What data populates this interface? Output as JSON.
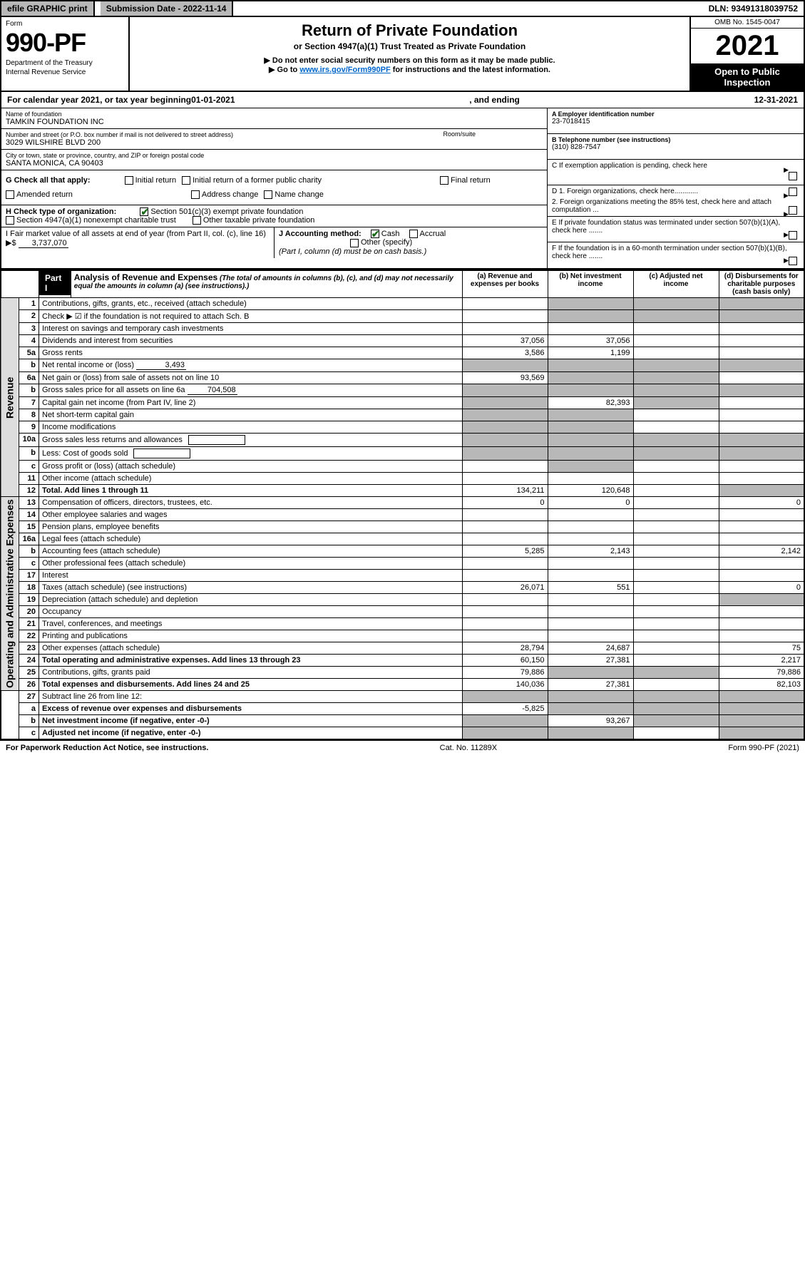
{
  "topbar": {
    "efile": "efile GRAPHIC print",
    "submission": "Submission Date - 2022-11-14",
    "dln": "DLN: 93491318039752"
  },
  "header": {
    "form_word": "Form",
    "form_number": "990-PF",
    "dept1": "Department of the Treasury",
    "dept2": "Internal Revenue Service",
    "title": "Return of Private Foundation",
    "subtitle": "or Section 4947(a)(1) Trust Treated as Private Foundation",
    "note1": "▶ Do not enter social security numbers on this form as it may be made public.",
    "note2_pre": "▶ Go to ",
    "note2_link": "www.irs.gov/Form990PF",
    "note2_post": " for instructions and the latest information.",
    "omb": "OMB No. 1545-0047",
    "year": "2021",
    "open": "Open to Public Inspection"
  },
  "calyear": {
    "pre": "For calendar year 2021, or tax year beginning ",
    "begin": "01-01-2021",
    "mid": " , and ending ",
    "end": "12-31-2021"
  },
  "id": {
    "name_lbl": "Name of foundation",
    "name": "TAMKIN FOUNDATION INC",
    "addr_lbl": "Number and street (or P.O. box number if mail is not delivered to street address)",
    "addr": "3029 WILSHIRE BLVD 200",
    "room_lbl": "Room/suite",
    "city_lbl": "City or town, state or province, country, and ZIP or foreign postal code",
    "city": "SANTA MONICA, CA  90403",
    "a_lbl": "A Employer identification number",
    "a_val": "23-7018415",
    "b_lbl": "B Telephone number (see instructions)",
    "b_val": "(310) 828-7547",
    "c_lbl": "C If exemption application is pending, check here",
    "d1_lbl": "D 1. Foreign organizations, check here............",
    "d2_lbl": "2. Foreign organizations meeting the 85% test, check here and attach computation ...",
    "e_lbl": "E  If private foundation status was terminated under section 507(b)(1)(A), check here .......",
    "f_lbl": "F  If the foundation is in a 60-month termination under section 507(b)(1)(B), check here ......."
  },
  "g": {
    "label": "G Check all that apply:",
    "opts": [
      "Initial return",
      "Initial return of a former public charity",
      "Final return",
      "Amended return",
      "Address change",
      "Name change"
    ]
  },
  "h": {
    "label": "H Check type of organization:",
    "opt1": "Section 501(c)(3) exempt private foundation",
    "opt2": "Section 4947(a)(1) nonexempt charitable trust",
    "opt3": "Other taxable private foundation"
  },
  "i": {
    "label": "I Fair market value of all assets at end of year (from Part II, col. (c), line 16)",
    "arrow": "▶$",
    "val": "3,737,070"
  },
  "j": {
    "label": "J Accounting method:",
    "cash": "Cash",
    "accrual": "Accrual",
    "other": "Other (specify)",
    "note": "(Part I, column (d) must be on cash basis.)"
  },
  "part1": {
    "tag": "Part I",
    "title": "Analysis of Revenue and Expenses",
    "desc": "(The total of amounts in columns (b), (c), and (d) may not necessarily equal the amounts in column (a) (see instructions).)",
    "col_a": "(a) Revenue and expenses per books",
    "col_b": "(b) Net investment income",
    "col_c": "(c) Adjusted net income",
    "col_d": "(d) Disbursements for charitable purposes (cash basis only)"
  },
  "side": {
    "revenue": "Revenue",
    "opex": "Operating and Administrative Expenses"
  },
  "rows": [
    {
      "n": "1",
      "d": "Contributions, gifts, grants, etc., received (attach schedule)",
      "a": "",
      "b": "",
      "c": "",
      "dd": "",
      "bs": true,
      "cs": true,
      "ds": true
    },
    {
      "n": "2",
      "d": "Check ▶ ☑ if the foundation is not required to attach Sch. B",
      "a": "",
      "b": "",
      "c": "",
      "dd": "",
      "bs": true,
      "cs": true,
      "ds": true,
      "bold_check": true
    },
    {
      "n": "3",
      "d": "Interest on savings and temporary cash investments",
      "a": "",
      "b": "",
      "c": "",
      "dd": ""
    },
    {
      "n": "4",
      "d": "Dividends and interest from securities",
      "a": "37,056",
      "b": "37,056",
      "c": "",
      "dd": ""
    },
    {
      "n": "5a",
      "d": "Gross rents",
      "a": "3,586",
      "b": "1,199",
      "c": "",
      "dd": ""
    },
    {
      "n": "b",
      "d": "Net rental income or (loss)",
      "inline": "3,493",
      "a": "",
      "b": "",
      "c": "",
      "dd": "",
      "as": true,
      "bs": true,
      "cs": true,
      "ds": true
    },
    {
      "n": "6a",
      "d": "Net gain or (loss) from sale of assets not on line 10",
      "a": "93,569",
      "b": "",
      "c": "",
      "dd": "",
      "bs": true,
      "cs": true
    },
    {
      "n": "b",
      "d": "Gross sales price for all assets on line 6a",
      "inline": "704,508",
      "a": "",
      "b": "",
      "c": "",
      "dd": "",
      "as": true,
      "bs": true,
      "cs": true,
      "ds": true
    },
    {
      "n": "7",
      "d": "Capital gain net income (from Part IV, line 2)",
      "a": "",
      "b": "82,393",
      "c": "",
      "dd": "",
      "as": true,
      "cs": true
    },
    {
      "n": "8",
      "d": "Net short-term capital gain",
      "a": "",
      "b": "",
      "c": "",
      "dd": "",
      "as": true,
      "bs": true
    },
    {
      "n": "9",
      "d": "Income modifications",
      "a": "",
      "b": "",
      "c": "",
      "dd": "",
      "as": true,
      "bs": true
    },
    {
      "n": "10a",
      "d": "Gross sales less returns and allowances",
      "box": true,
      "a": "",
      "b": "",
      "c": "",
      "dd": "",
      "as": true,
      "bs": true,
      "cs": true,
      "ds": true
    },
    {
      "n": "b",
      "d": "Less: Cost of goods sold",
      "box": true,
      "a": "",
      "b": "",
      "c": "",
      "dd": "",
      "as": true,
      "bs": true,
      "cs": true,
      "ds": true
    },
    {
      "n": "c",
      "d": "Gross profit or (loss) (attach schedule)",
      "a": "",
      "b": "",
      "c": "",
      "dd": "",
      "bs": true
    },
    {
      "n": "11",
      "d": "Other income (attach schedule)",
      "a": "",
      "b": "",
      "c": "",
      "dd": ""
    },
    {
      "n": "12",
      "d": "Total. Add lines 1 through 11",
      "a": "134,211",
      "b": "120,648",
      "c": "",
      "dd": "",
      "bold": true,
      "ds": true
    }
  ],
  "oprows": [
    {
      "n": "13",
      "d": "Compensation of officers, directors, trustees, etc.",
      "a": "0",
      "b": "0",
      "c": "",
      "dd": "0"
    },
    {
      "n": "14",
      "d": "Other employee salaries and wages",
      "a": "",
      "b": "",
      "c": "",
      "dd": ""
    },
    {
      "n": "15",
      "d": "Pension plans, employee benefits",
      "a": "",
      "b": "",
      "c": "",
      "dd": ""
    },
    {
      "n": "16a",
      "d": "Legal fees (attach schedule)",
      "a": "",
      "b": "",
      "c": "",
      "dd": ""
    },
    {
      "n": "b",
      "d": "Accounting fees (attach schedule)",
      "a": "5,285",
      "b": "2,143",
      "c": "",
      "dd": "2,142"
    },
    {
      "n": "c",
      "d": "Other professional fees (attach schedule)",
      "a": "",
      "b": "",
      "c": "",
      "dd": ""
    },
    {
      "n": "17",
      "d": "Interest",
      "a": "",
      "b": "",
      "c": "",
      "dd": ""
    },
    {
      "n": "18",
      "d": "Taxes (attach schedule) (see instructions)",
      "a": "26,071",
      "b": "551",
      "c": "",
      "dd": "0"
    },
    {
      "n": "19",
      "d": "Depreciation (attach schedule) and depletion",
      "a": "",
      "b": "",
      "c": "",
      "dd": "",
      "ds": true
    },
    {
      "n": "20",
      "d": "Occupancy",
      "a": "",
      "b": "",
      "c": "",
      "dd": ""
    },
    {
      "n": "21",
      "d": "Travel, conferences, and meetings",
      "a": "",
      "b": "",
      "c": "",
      "dd": ""
    },
    {
      "n": "22",
      "d": "Printing and publications",
      "a": "",
      "b": "",
      "c": "",
      "dd": ""
    },
    {
      "n": "23",
      "d": "Other expenses (attach schedule)",
      "a": "28,794",
      "b": "24,687",
      "c": "",
      "dd": "75"
    },
    {
      "n": "24",
      "d": "Total operating and administrative expenses. Add lines 13 through 23",
      "a": "60,150",
      "b": "27,381",
      "c": "",
      "dd": "2,217",
      "bold": true
    },
    {
      "n": "25",
      "d": "Contributions, gifts, grants paid",
      "a": "79,886",
      "b": "",
      "c": "",
      "dd": "79,886",
      "bs": true,
      "cs": true
    },
    {
      "n": "26",
      "d": "Total expenses and disbursements. Add lines 24 and 25",
      "a": "140,036",
      "b": "27,381",
      "c": "",
      "dd": "82,103",
      "bold": true
    }
  ],
  "botrows": [
    {
      "n": "27",
      "d": "Subtract line 26 from line 12:",
      "a": "",
      "b": "",
      "c": "",
      "dd": "",
      "as": true,
      "bs": true,
      "cs": true,
      "ds": true
    },
    {
      "n": "a",
      "d": "Excess of revenue over expenses and disbursements",
      "a": "-5,825",
      "b": "",
      "c": "",
      "dd": "",
      "bold": true,
      "bs": true,
      "cs": true,
      "ds": true
    },
    {
      "n": "b",
      "d": "Net investment income (if negative, enter -0-)",
      "a": "",
      "b": "93,267",
      "c": "",
      "dd": "",
      "bold": true,
      "as": true,
      "cs": true,
      "ds": true
    },
    {
      "n": "c",
      "d": "Adjusted net income (if negative, enter -0-)",
      "a": "",
      "b": "",
      "c": "",
      "dd": "",
      "bold": true,
      "as": true,
      "bs": true,
      "ds": true
    }
  ],
  "footer": {
    "left": "For Paperwork Reduction Act Notice, see instructions.",
    "mid": "Cat. No. 11289X",
    "right": "Form 990-PF (2021)"
  },
  "colors": {
    "shaded": "#b8b8b8",
    "check_green": "#1a6b1a",
    "link": "#0066cc"
  }
}
